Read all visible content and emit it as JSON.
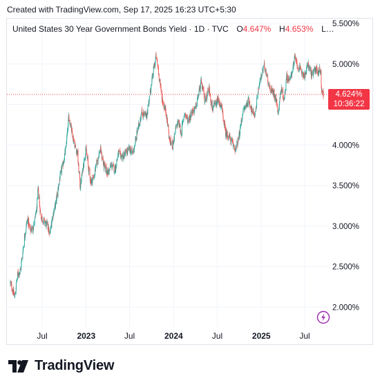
{
  "header": {
    "caption": "Created with TradingView.com, Sep 17, 2025 16:23 UTC+5:30"
  },
  "legend": {
    "symbol": "United States 30 Year Government Bonds Yield · 1D · TVC",
    "open_label": "O",
    "open_value": "4.647%",
    "high_label": "H",
    "high_value": "4.653%",
    "more": "L…"
  },
  "last_price": {
    "value": "4.624%",
    "countdown": "10:36:22",
    "numeric": 4.624
  },
  "brand": {
    "name": "TradingView"
  },
  "colors": {
    "up": "#26a69a",
    "down": "#ef5350",
    "last": "#f23645",
    "grid": "#f0f3fa",
    "axis_text": "#131722",
    "accent_icon": "#9c27b0"
  },
  "icons": {
    "logo": "tradingview-logo-icon",
    "extra": "lightning-bolt-icon"
  },
  "chart_data": {
    "type": "candlestick",
    "ylim": [
      1.75,
      5.55
    ],
    "xlim": [
      "2022-02-15",
      "2025-09-17"
    ],
    "y_ticks": [
      {
        "value": 2.0,
        "label": "2.000%"
      },
      {
        "value": 2.5,
        "label": "2.500%"
      },
      {
        "value": 3.0,
        "label": "3.000%"
      },
      {
        "value": 3.5,
        "label": "3.500%"
      },
      {
        "value": 4.0,
        "label": "4.000%"
      },
      {
        "value": 4.5,
        "label": "4.500%"
      },
      {
        "value": 5.0,
        "label": "5.000%"
      },
      {
        "value": 5.5,
        "label": "5.500%"
      }
    ],
    "x_ticks": [
      {
        "date": "2022-07-01",
        "label": "Jul",
        "bold": false
      },
      {
        "date": "2023-01-01",
        "label": "2023",
        "bold": true
      },
      {
        "date": "2023-07-01",
        "label": "Jul",
        "bold": false
      },
      {
        "date": "2024-01-01",
        "label": "2024",
        "bold": true
      },
      {
        "date": "2024-07-01",
        "label": "Jul",
        "bold": false
      },
      {
        "date": "2025-01-01",
        "label": "2025",
        "bold": true
      },
      {
        "date": "2025-07-01",
        "label": "Jul",
        "bold": false
      }
    ],
    "close_path": [
      [
        "2022-02-18",
        2.3
      ],
      [
        "2022-03-01",
        2.2
      ],
      [
        "2022-03-08",
        2.12
      ],
      [
        "2022-03-20",
        2.4
      ],
      [
        "2022-04-01",
        2.45
      ],
      [
        "2022-04-20",
        2.9
      ],
      [
        "2022-05-01",
        3.1
      ],
      [
        "2022-05-12",
        2.95
      ],
      [
        "2022-05-25",
        2.98
      ],
      [
        "2022-06-08",
        3.2
      ],
      [
        "2022-06-14",
        3.45
      ],
      [
        "2022-06-25",
        3.12
      ],
      [
        "2022-07-10",
        3.05
      ],
      [
        "2022-07-25",
        3.0
      ],
      [
        "2022-08-01",
        2.88
      ],
      [
        "2022-08-12",
        3.1
      ],
      [
        "2022-08-28",
        3.3
      ],
      [
        "2022-09-10",
        3.55
      ],
      [
        "2022-09-28",
        3.8
      ],
      [
        "2022-10-08",
        3.95
      ],
      [
        "2022-10-20",
        4.35
      ],
      [
        "2022-10-28",
        4.25
      ],
      [
        "2022-11-10",
        4.05
      ],
      [
        "2022-11-25",
        3.9
      ],
      [
        "2022-12-07",
        3.48
      ],
      [
        "2022-12-20",
        3.75
      ],
      [
        "2022-12-31",
        3.95
      ],
      [
        "2023-01-10",
        3.72
      ],
      [
        "2023-01-20",
        3.55
      ],
      [
        "2023-02-01",
        3.6
      ],
      [
        "2023-02-15",
        3.8
      ],
      [
        "2023-03-01",
        3.95
      ],
      [
        "2023-03-15",
        3.75
      ],
      [
        "2023-04-01",
        3.65
      ],
      [
        "2023-04-15",
        3.75
      ],
      [
        "2023-05-01",
        3.7
      ],
      [
        "2023-05-15",
        3.9
      ],
      [
        "2023-06-01",
        3.85
      ],
      [
        "2023-06-15",
        3.9
      ],
      [
        "2023-07-01",
        3.95
      ],
      [
        "2023-07-15",
        3.9
      ],
      [
        "2023-08-01",
        4.15
      ],
      [
        "2023-08-20",
        4.4
      ],
      [
        "2023-09-10",
        4.35
      ],
      [
        "2023-09-25",
        4.65
      ],
      [
        "2023-10-10",
        4.95
      ],
      [
        "2023-10-20",
        5.1
      ],
      [
        "2023-11-01",
        4.85
      ],
      [
        "2023-11-15",
        4.55
      ],
      [
        "2023-12-01",
        4.4
      ],
      [
        "2023-12-15",
        4.05
      ],
      [
        "2023-12-28",
        4.0
      ],
      [
        "2024-01-10",
        4.2
      ],
      [
        "2024-01-20",
        4.3
      ],
      [
        "2024-02-01",
        4.15
      ],
      [
        "2024-02-15",
        4.4
      ],
      [
        "2024-03-01",
        4.3
      ],
      [
        "2024-03-15",
        4.4
      ],
      [
        "2024-04-01",
        4.45
      ],
      [
        "2024-04-15",
        4.65
      ],
      [
        "2024-04-25",
        4.78
      ],
      [
        "2024-05-10",
        4.55
      ],
      [
        "2024-05-28",
        4.7
      ],
      [
        "2024-06-10",
        4.45
      ],
      [
        "2024-06-25",
        4.5
      ],
      [
        "2024-07-05",
        4.55
      ],
      [
        "2024-07-20",
        4.45
      ],
      [
        "2024-08-05",
        4.15
      ],
      [
        "2024-08-20",
        4.1
      ],
      [
        "2024-09-05",
        4.0
      ],
      [
        "2024-09-16",
        3.95
      ],
      [
        "2024-09-30",
        4.1
      ],
      [
        "2024-10-15",
        4.4
      ],
      [
        "2024-10-31",
        4.5
      ],
      [
        "2024-11-10",
        4.55
      ],
      [
        "2024-11-25",
        4.4
      ],
      [
        "2024-12-06",
        4.38
      ],
      [
        "2024-12-20",
        4.7
      ],
      [
        "2025-01-05",
        4.9
      ],
      [
        "2025-01-14",
        4.98
      ],
      [
        "2025-01-25",
        4.85
      ],
      [
        "2025-02-05",
        4.7
      ],
      [
        "2025-02-20",
        4.65
      ],
      [
        "2025-03-05",
        4.55
      ],
      [
        "2025-03-12",
        4.4
      ],
      [
        "2025-03-25",
        4.7
      ],
      [
        "2025-04-07",
        4.55
      ],
      [
        "2025-04-15",
        4.85
      ],
      [
        "2025-05-01",
        4.8
      ],
      [
        "2025-05-21",
        5.08
      ],
      [
        "2025-06-05",
        4.95
      ],
      [
        "2025-06-20",
        4.9
      ],
      [
        "2025-07-01",
        4.85
      ],
      [
        "2025-07-15",
        5.0
      ],
      [
        "2025-08-01",
        4.85
      ],
      [
        "2025-08-15",
        4.95
      ],
      [
        "2025-08-25",
        4.9
      ],
      [
        "2025-09-03",
        4.95
      ],
      [
        "2025-09-10",
        4.68
      ],
      [
        "2025-09-17",
        4.62
      ]
    ]
  }
}
